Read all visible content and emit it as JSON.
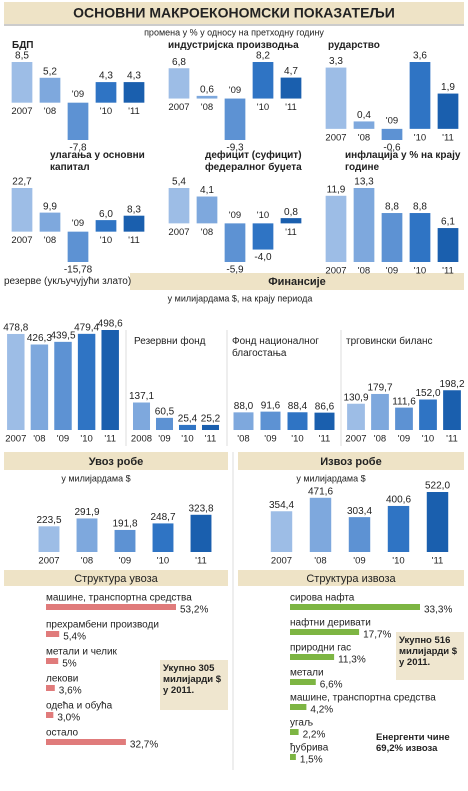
{
  "title": "ОСНОВНИ МАКРОЕКОНОМСКИ ПОКАЗАТЕЉИ",
  "subtitle": "промена у % у односу на претходну годину",
  "finance_header": "Финансије",
  "finance_subtitle": "у милијардама $, на крају периода",
  "bar_colors": [
    "#9dbde6",
    "#7ea8dd",
    "#5d92d3",
    "#2f74c4",
    "#1a5fae"
  ],
  "chart_data": [
    {
      "type": "bar",
      "title": "БДП",
      "categories": [
        "2007",
        "'08",
        "'09",
        "'10",
        "'11"
      ],
      "values": [
        8.5,
        5.2,
        -7.8,
        4.3,
        4.3
      ],
      "value_labels": [
        "8,5",
        "5,2",
        "-7,8",
        "4,3",
        "4,3"
      ]
    },
    {
      "type": "bar",
      "title": "индустријска производња",
      "categories": [
        "2007",
        "'08",
        "'09",
        "'10",
        "'11"
      ],
      "values": [
        6.8,
        0.6,
        -9.3,
        8.2,
        4.7
      ],
      "value_labels": [
        "6,8",
        "0,6",
        "-9,3",
        "8,2",
        "4,7"
      ]
    },
    {
      "type": "bar",
      "title": "рударство",
      "categories": [
        "2007",
        "'08",
        "'09",
        "'10",
        "'11"
      ],
      "values": [
        3.3,
        0.4,
        -0.6,
        3.6,
        1.9
      ],
      "value_labels": [
        "3,3",
        "0,4",
        "-0,6",
        "3,6",
        "1,9"
      ]
    },
    {
      "type": "bar",
      "title": "улагања у основни капитал",
      "categories": [
        "2007",
        "'08",
        "'09",
        "'10",
        "'11"
      ],
      "values": [
        22.7,
        9.9,
        -15.78,
        6.0,
        8.3
      ],
      "value_labels": [
        "22,7",
        "9,9",
        "-15,78",
        "6,0",
        "8,3"
      ]
    },
    {
      "type": "bar",
      "title": "дефицит (суфицит) федералног буџета",
      "categories": [
        "2007",
        "'08",
        "'09",
        "'10",
        "'11"
      ],
      "values": [
        5.4,
        4.1,
        -5.9,
        -4.0,
        0.8
      ],
      "value_labels": [
        "5,4",
        "4,1",
        "-5,9",
        "-4,0",
        "0,8"
      ]
    },
    {
      "type": "bar",
      "title": "инфлација у % на крају године",
      "categories": [
        "2007",
        "'08",
        "'09",
        "'10",
        "'11"
      ],
      "values": [
        11.9,
        13.3,
        8.8,
        8.8,
        6.1
      ],
      "value_labels": [
        "11,9",
        "13,3",
        "8,8",
        "8,8",
        "6,1"
      ]
    },
    {
      "type": "bar",
      "title": "резерве (укључујући злато)",
      "categories": [
        "2007",
        "'08",
        "'09",
        "'10",
        "'11"
      ],
      "values": [
        478.8,
        426.3,
        439.5,
        479.4,
        498.6
      ],
      "value_labels": [
        "478,8",
        "426,3",
        "439,5",
        "479,4",
        "498,6"
      ]
    },
    {
      "type": "bar",
      "title": "Резервни фонд",
      "categories": [
        "2008",
        "'09",
        "'10",
        "'11"
      ],
      "values": [
        137.1,
        60.5,
        25.4,
        25.2
      ],
      "value_labels": [
        "137,1",
        "60,5",
        "25,4",
        "25,2"
      ]
    },
    {
      "type": "bar",
      "title": "Фонд националног благостања",
      "categories": [
        "'08",
        "'09",
        "'10",
        "'11"
      ],
      "values": [
        88.0,
        91.6,
        88.4,
        86.6
      ],
      "value_labels": [
        "88,0",
        "91,6",
        "88,4",
        "86,6"
      ]
    },
    {
      "type": "bar",
      "title": "трговински биланс",
      "categories": [
        "2007",
        "'08",
        "'09",
        "'10",
        "'11"
      ],
      "values": [
        130.9,
        179.7,
        111.6,
        152.0,
        198.2
      ],
      "value_labels": [
        "130,9",
        "179,7",
        "111,6",
        "152,0",
        "198,2"
      ]
    },
    {
      "type": "bar",
      "title": "Увоз робе",
      "subtitle": "у милијардама $",
      "categories": [
        "2007",
        "'08",
        "'09",
        "'10",
        "'11"
      ],
      "values": [
        223.5,
        291.9,
        191.8,
        248.7,
        323.8
      ],
      "value_labels": [
        "223,5",
        "291,9",
        "191,8",
        "248,7",
        "323,8"
      ]
    },
    {
      "type": "bar",
      "title": "Извоз робе",
      "subtitle": "у милијардама $",
      "categories": [
        "2007",
        "'08",
        "'09",
        "'10",
        "'11"
      ],
      "values": [
        354.4,
        471.6,
        303.4,
        400.6,
        522.0
      ],
      "value_labels": [
        "354,4",
        "471,6",
        "303,4",
        "400,6",
        "522,0"
      ]
    },
    {
      "type": "hbar",
      "title": "Структура увоза",
      "color": "#e07b7b",
      "categories": [
        "машине, транспортна средства",
        "прехрамбени производи",
        "метали и челик",
        "лекови",
        "одећа и обућа",
        "остало"
      ],
      "values": [
        53.2,
        5.4,
        5,
        3.6,
        3.0,
        32.7
      ],
      "value_labels": [
        "53,2%",
        "5,4%",
        "5%",
        "3,6%",
        "3,0%",
        "32,7%"
      ],
      "notes": [
        "Укупно 305 милијарди $ у 2011."
      ]
    },
    {
      "type": "hbar",
      "title": "Структура извоза",
      "color": "#7db543",
      "categories": [
        "сирова нафта",
        "нафтни деривати",
        "природни гас",
        "метали",
        "машине, транспортна средства",
        "угаљ",
        "ђубрива"
      ],
      "values": [
        33.3,
        17.7,
        11.3,
        6.6,
        4.2,
        2.2,
        1.5
      ],
      "value_labels": [
        "33,3%",
        "17,7%",
        "11,3%",
        "6,6%",
        "4,2%",
        "2,2%",
        "1,5%"
      ],
      "notes": [
        "Укупно 516 милијарди $ у 2011.",
        "Енергенти чине 69,2% извоза"
      ]
    }
  ]
}
